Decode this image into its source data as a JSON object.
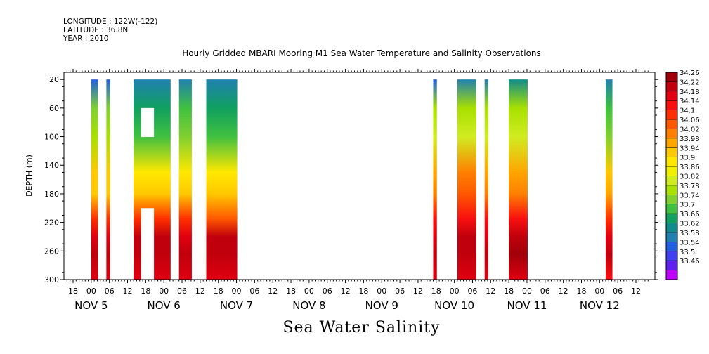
{
  "header": {
    "longitude": "LONGITUDE : 122W(-122)",
    "latitude": "LATITUDE : 36.8N",
    "year": "YEAR : 2010"
  },
  "title": "Hourly Gridded MBARI Mooring M1 Sea Water Temperature and Salinity Observations",
  "variable_label": "Sea Water Salinity",
  "chart_data": {
    "type": "heatmap",
    "title": "Hourly Gridded MBARI Mooring M1 Sea Water Temperature and Salinity Observations",
    "xlabel": "",
    "ylabel": "DEPTH (m)",
    "y_reversed": true,
    "ylim": [
      300,
      10
    ],
    "y_ticks": [
      20,
      60,
      100,
      140,
      180,
      220,
      260,
      300
    ],
    "x_hour_tick_labels": [
      "18",
      "00",
      "06",
      "12",
      "18",
      "00",
      "06",
      "12",
      "18",
      "00",
      "06",
      "12",
      "18",
      "00",
      "06",
      "12",
      "18",
      "00",
      "06",
      "12",
      "18",
      "00",
      "06",
      "12",
      "18",
      "00",
      "06",
      "12",
      "18",
      "00",
      "06",
      "12"
    ],
    "x_day_labels": [
      "NOV  5",
      "NOV  6",
      "NOV  7",
      "NOV  8",
      "NOV  9",
      "NOV 10",
      "NOV 11",
      "NOV 12"
    ],
    "colorbar": {
      "levels": [
        34.26,
        34.22,
        34.18,
        34.14,
        34.1,
        34.06,
        34.02,
        33.98,
        33.94,
        33.9,
        33.86,
        33.82,
        33.78,
        33.74,
        33.7,
        33.66,
        33.62,
        33.58,
        33.54,
        33.5,
        33.46
      ],
      "colors": [
        "#a0000a",
        "#c0000c",
        "#e00010",
        "#f81010",
        "#ff3000",
        "#ff5800",
        "#ff8000",
        "#ffa500",
        "#ffc800",
        "#ffe800",
        "#f0f000",
        "#d0ec20",
        "#a8e000",
        "#80d030",
        "#40c040",
        "#10a060",
        "#108c8c",
        "#2080b0",
        "#2060e0",
        "#4040f0",
        "#6020f0",
        "#c000ff"
      ]
    },
    "columns": [
      {
        "start": "NOV 5 00:00",
        "end": "NOV 5 02:00",
        "surface": 33.55,
        "thermocline": 33.8,
        "mid": 33.97,
        "deep": 34.24
      },
      {
        "start": "NOV 5 05:00",
        "end": "NOV 5 06:00",
        "surface": 33.55,
        "thermocline": 33.8,
        "mid": 33.97,
        "deep": 34.24
      },
      {
        "start": "NOV 5 14:00",
        "end": "NOV 6 02:00",
        "surface": 33.58,
        "thermocline": 33.72,
        "mid": 33.96,
        "deep": 34.25,
        "gaps_m": [
          [
            60,
            100
          ],
          [
            200,
            300
          ]
        ]
      },
      {
        "start": "NOV 6 05:00",
        "end": "NOV 6 09:00",
        "surface": 33.58,
        "thermocline": 33.74,
        "mid": 33.96,
        "deep": 34.24
      },
      {
        "start": "NOV 6 14:00",
        "end": "NOV 7 00:00",
        "surface": 33.58,
        "thermocline": 33.72,
        "mid": 33.94,
        "deep": 34.25
      },
      {
        "start": "NOV 9 17:00",
        "end": "NOV 9 18:00",
        "surface": 33.55,
        "thermocline": 33.85,
        "mid": 34.05,
        "deep": 34.24
      },
      {
        "start": "NOV 10 01:00",
        "end": "NOV 10 07:00",
        "surface": 33.58,
        "thermocline": 33.82,
        "mid": 34.06,
        "deep": 34.25
      },
      {
        "start": "NOV 10 10:00",
        "end": "NOV 10 11:00",
        "surface": 33.58,
        "thermocline": 33.82,
        "mid": 34.04,
        "deep": 34.24
      },
      {
        "start": "NOV 10 18:00",
        "end": "NOV 11 00:00",
        "surface": 33.62,
        "thermocline": 33.82,
        "mid": 34.04,
        "deep": 34.26
      },
      {
        "start": "NOV 12 02:00",
        "end": "NOV 12 04:00",
        "surface": 33.58,
        "thermocline": 33.76,
        "mid": 34.0,
        "deep": 34.22
      }
    ]
  }
}
